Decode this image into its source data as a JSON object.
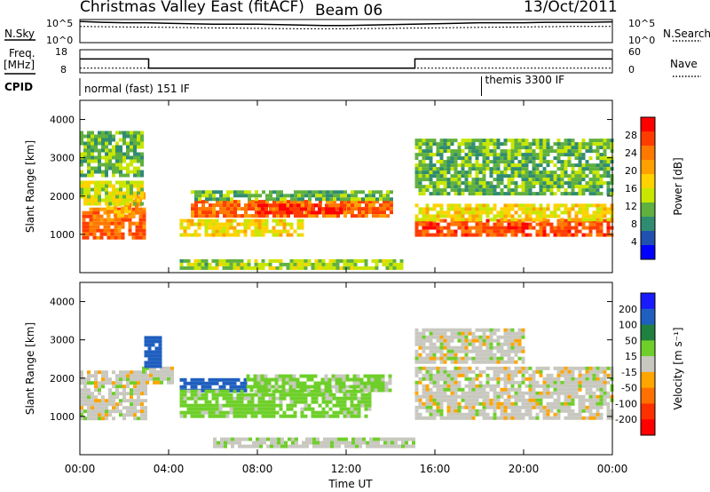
{
  "header": {
    "title": "Christmas Valley East (fitACF)",
    "beam": "Beam 06",
    "date": "13/Oct/2011"
  },
  "top_panels": {
    "nsky_label": "N.Sky",
    "nsearch_label": "N.Search",
    "noise_ticks": [
      "10^5",
      "10^0"
    ],
    "freq_label_line1": "Freq.",
    "freq_label_line2": "[MHz]",
    "freq_ticks": [
      "18",
      "8"
    ],
    "nave_ticks": [
      "60",
      "0"
    ],
    "nave_label": "Nave",
    "cpid_label": "CPID",
    "cpid_segments": [
      {
        "text": "normal (fast) 151 IF",
        "start_hour": 0
      },
      {
        "text": "themis 3300 IF",
        "start_hour": 18.1
      }
    ]
  },
  "axes": {
    "x_ticks": [
      "00:00",
      "04:00",
      "08:00",
      "12:00",
      "16:00",
      "20:00",
      "00:00"
    ],
    "x_label": "Time UT",
    "y_label": "Slant Range [km]",
    "y_ticks": [
      "4000",
      "3000",
      "2000",
      "1000"
    ]
  },
  "power_scale": {
    "label": "Power [dB]",
    "ticks": [
      "28",
      "24",
      "20",
      "16",
      "12",
      "8",
      "4"
    ],
    "colors": [
      "#ff0000",
      "#ff3c00",
      "#ff7800",
      "#ffa000",
      "#ffd200",
      "#c8e600",
      "#60b040",
      "#308c70",
      "#2050b0",
      "#0000ff"
    ]
  },
  "velocity_scale": {
    "label": "Velocity [m s⁻¹]",
    "ticks": [
      "200",
      "100",
      "50",
      "15",
      "-15",
      "-50",
      "-100",
      "-200"
    ],
    "colors": [
      "#1a1aff",
      "#1f5fbf",
      "#208040",
      "#6fcf2a",
      "#c8c8c0",
      "#ffa500",
      "#ff7000",
      "#ff3000",
      "#ff0000"
    ]
  },
  "chart_data": [
    {
      "type": "line",
      "title": "",
      "series": [
        {
          "name": "N.Sky",
          "x_hours": [
            0,
            1,
            2,
            3,
            4,
            5,
            6,
            7,
            8,
            9,
            10,
            11,
            12,
            13,
            14,
            15,
            16,
            17,
            18,
            19,
            20,
            21,
            22,
            23,
            24
          ],
          "log10_noise": [
            4.6,
            4.4,
            4.3,
            4.3,
            4.2,
            4.1,
            4.0,
            4.0,
            4.0,
            3.9,
            3.8,
            3.7,
            3.7,
            3.8,
            3.9,
            4.0,
            4.1,
            4.2,
            4.3,
            4.3,
            4.3,
            4.4,
            4.4,
            4.4,
            4.5
          ]
        },
        {
          "name": "N.Search",
          "x_hours": [
            0,
            2,
            4,
            6,
            8,
            10,
            12,
            14,
            16,
            18,
            20,
            22,
            24
          ],
          "log10_noise": [
            3.5,
            3.4,
            3.3,
            3.2,
            3.1,
            3.0,
            3.0,
            3.1,
            3.2,
            3.3,
            3.4,
            3.5,
            3.5
          ]
        }
      ],
      "ylim": [
        0,
        5
      ],
      "xlim": [
        0,
        24
      ]
    },
    {
      "type": "line",
      "series": [
        {
          "name": "Freq.",
          "x_hours": [
            0,
            3.1,
            3.1,
            15.1,
            15.1,
            24
          ],
          "freq_mhz": [
            14,
            14,
            10,
            10,
            14,
            14
          ]
        },
        {
          "name": "Nave",
          "x_hours": [
            0,
            24
          ],
          "nave": [
            12,
            12
          ]
        }
      ],
      "ylim": [
        8,
        18
      ],
      "xlim": [
        0,
        24
      ]
    },
    {
      "type": "heatmap",
      "xlabel": "Time UT",
      "ylabel": "Slant Range [km]",
      "xlim": [
        0,
        24
      ],
      "ylim": [
        0,
        4500
      ],
      "colorbar_label": "Power [dB]",
      "colorbar_range": [
        0,
        30
      ],
      "regions": [
        {
          "t0": 0.1,
          "t1": 2.9,
          "r0": 950,
          "r1": 1700,
          "value": 24
        },
        {
          "t0": 1.2,
          "t1": 2.9,
          "r0": 1500,
          "r1": 2100,
          "value": 20
        },
        {
          "t0": 0.0,
          "t1": 2.8,
          "r0": 1800,
          "r1": 2400,
          "value": 14
        },
        {
          "t0": 0.0,
          "t1": 2.8,
          "r0": 2500,
          "r1": 3700,
          "value": 10
        },
        {
          "t0": 5.0,
          "t1": 14.0,
          "r0": 1500,
          "r1": 1900,
          "value": 24
        },
        {
          "t0": 8.0,
          "t1": 12.0,
          "r0": 1550,
          "r1": 1800,
          "value": 28
        },
        {
          "t0": 4.5,
          "t1": 10.0,
          "r0": 1000,
          "r1": 1400,
          "value": 16
        },
        {
          "t0": 5.0,
          "t1": 14.0,
          "r0": 1900,
          "r1": 2150,
          "value": 10
        },
        {
          "t0": 15.1,
          "t1": 24.0,
          "r0": 950,
          "r1": 1400,
          "value": 26
        },
        {
          "t0": 15.1,
          "t1": 24.0,
          "r0": 1400,
          "r1": 1800,
          "value": 16
        },
        {
          "t0": 15.1,
          "t1": 24.0,
          "r0": 2100,
          "r1": 3500,
          "value": 10
        },
        {
          "t0": 4.5,
          "t1": 14.5,
          "r0": 150,
          "r1": 350,
          "value": 12
        }
      ]
    },
    {
      "type": "heatmap",
      "xlabel": "Time UT",
      "ylabel": "Slant Range [km]",
      "xlim": [
        0,
        24
      ],
      "ylim": [
        0,
        4500
      ],
      "colorbar_label": "Velocity [m s⁻¹]",
      "colorbar_range": [
        -200,
        200
      ],
      "regions": [
        {
          "t0": 0.0,
          "t1": 3.0,
          "r0": 950,
          "r1": 2200,
          "velocity": 0
        },
        {
          "t0": 2.8,
          "t1": 4.2,
          "r0": 1900,
          "r1": 2300,
          "velocity": 0
        },
        {
          "t0": 2.9,
          "t1": 3.6,
          "r0": 2300,
          "r1": 3100,
          "velocity": 180
        },
        {
          "t0": 4.5,
          "t1": 7.5,
          "r0": 1700,
          "r1": 2000,
          "velocity": 180
        },
        {
          "t0": 4.5,
          "t1": 13.0,
          "r0": 1050,
          "r1": 1700,
          "velocity": 30
        },
        {
          "t0": 7.5,
          "t1": 14.0,
          "r0": 1700,
          "r1": 2100,
          "velocity": 25
        },
        {
          "t0": 15.1,
          "t1": 24.0,
          "r0": 950,
          "r1": 2300,
          "velocity": 0
        },
        {
          "t0": 15.1,
          "t1": 20.0,
          "r0": 2400,
          "r1": 3300,
          "velocity": 0
        },
        {
          "t0": 6.0,
          "t1": 15.0,
          "r0": 200,
          "r1": 450,
          "velocity": 5
        }
      ]
    }
  ]
}
